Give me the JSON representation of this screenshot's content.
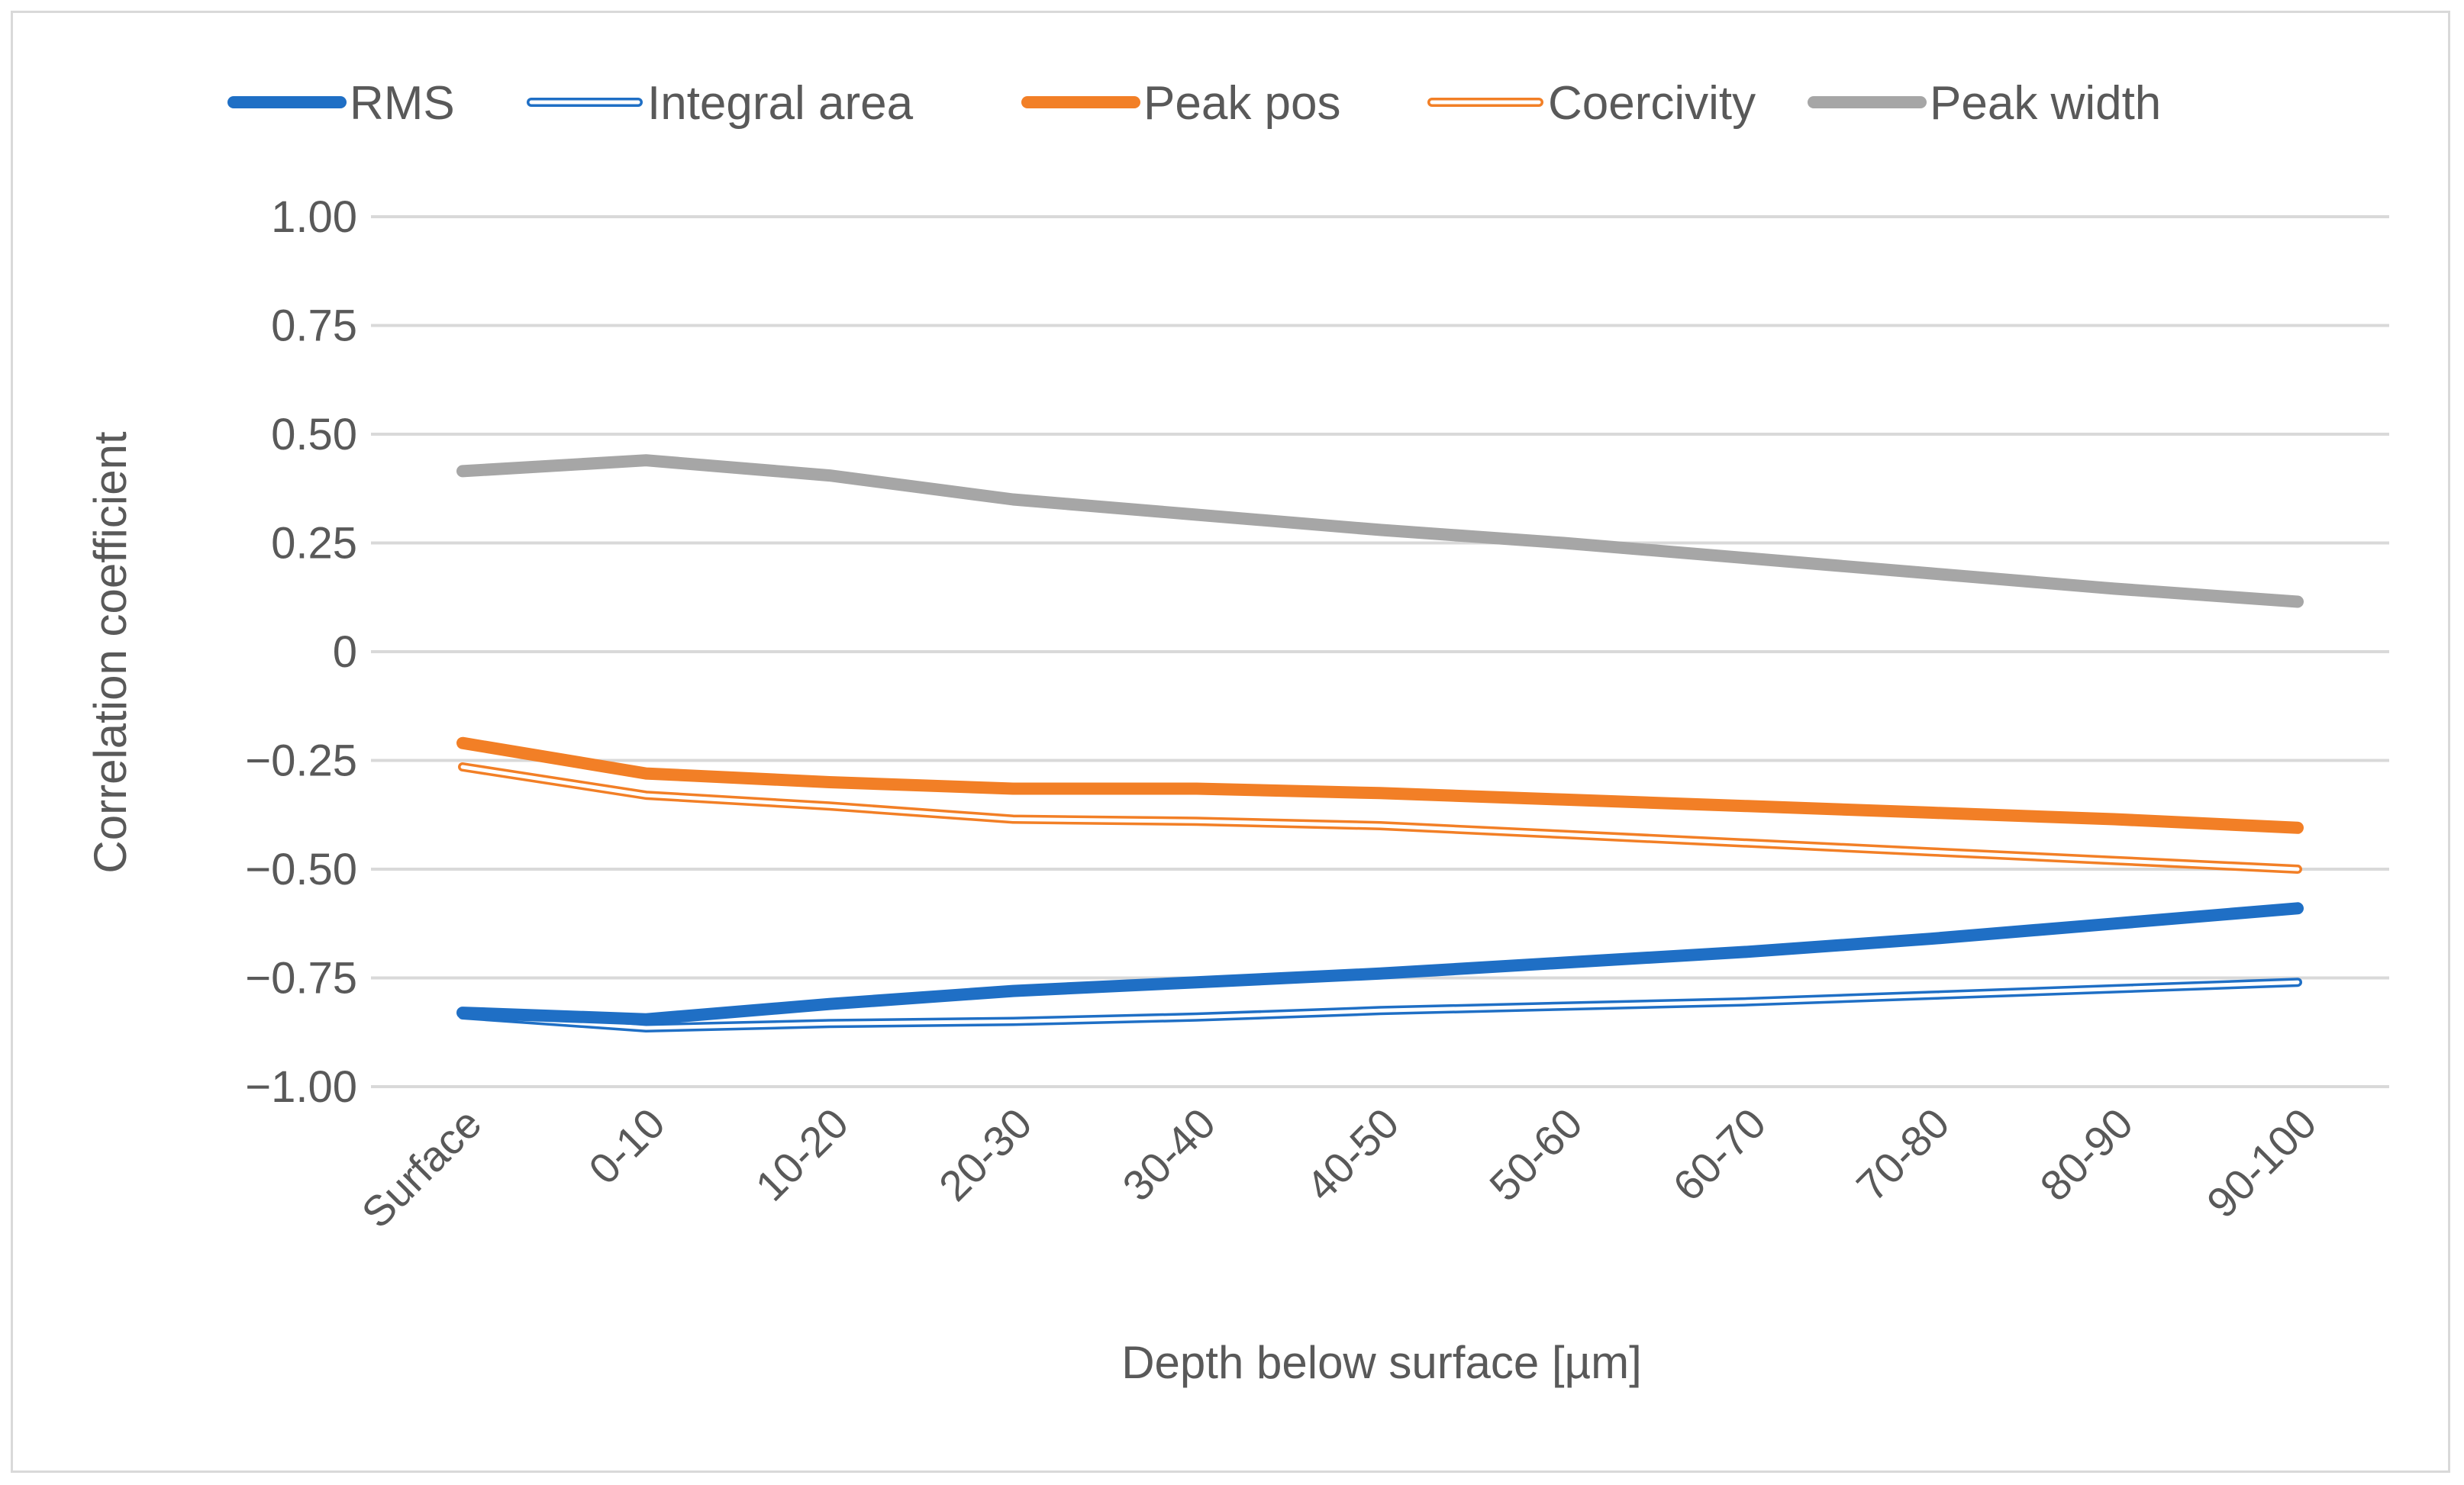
{
  "chart_data": {
    "type": "line",
    "title": "",
    "xlabel": "Depth below surface [µm]",
    "ylabel": "Correlation coefficient",
    "categories": [
      "Surface",
      "0-10",
      "10-20",
      "20-30",
      "30-40",
      "40-50",
      "50-60",
      "60-70",
      "70-80",
      "80-90",
      "90-100"
    ],
    "ylim": [
      -1.0,
      1.0
    ],
    "yticks": [
      1.0,
      0.75,
      0.5,
      0.25,
      0,
      -0.25,
      -0.5,
      -0.75,
      -1.0
    ],
    "ytick_labels": [
      "1.00",
      "0.75",
      "0.50",
      "0.25",
      "0",
      "−0.25",
      "−0.50",
      "−0.75",
      "−1.00"
    ],
    "grid": true,
    "legend_position": "top",
    "series": [
      {
        "name": "RMS",
        "color": "#1f6fc5",
        "style": "solid-thick",
        "values": [
          -0.83,
          -0.845,
          -0.81,
          -0.78,
          -0.76,
          -0.74,
          -0.715,
          -0.69,
          -0.66,
          -0.625,
          -0.59
        ]
      },
      {
        "name": "Integral area",
        "color": "#1f6fc5",
        "style": "hollow",
        "values": [
          -0.835,
          -0.865,
          -0.855,
          -0.85,
          -0.84,
          -0.825,
          -0.815,
          -0.805,
          -0.79,
          -0.775,
          -0.76
        ]
      },
      {
        "name": "Peak pos",
        "color": "#f27f26",
        "style": "solid-thick",
        "values": [
          -0.21,
          -0.28,
          -0.3,
          -0.315,
          -0.315,
          -0.325,
          -0.34,
          -0.355,
          -0.37,
          -0.385,
          -0.405
        ]
      },
      {
        "name": "Coercivity",
        "color": "#f27f26",
        "style": "hollow",
        "values": [
          -0.265,
          -0.33,
          -0.355,
          -0.385,
          -0.39,
          -0.4,
          -0.42,
          -0.44,
          -0.46,
          -0.48,
          -0.5
        ]
      },
      {
        "name": "Peak width",
        "color": "#a6a6a6",
        "style": "solid-thick",
        "values": [
          0.415,
          0.44,
          0.405,
          0.35,
          0.315,
          0.28,
          0.25,
          0.215,
          0.18,
          0.145,
          0.115
        ]
      }
    ]
  }
}
